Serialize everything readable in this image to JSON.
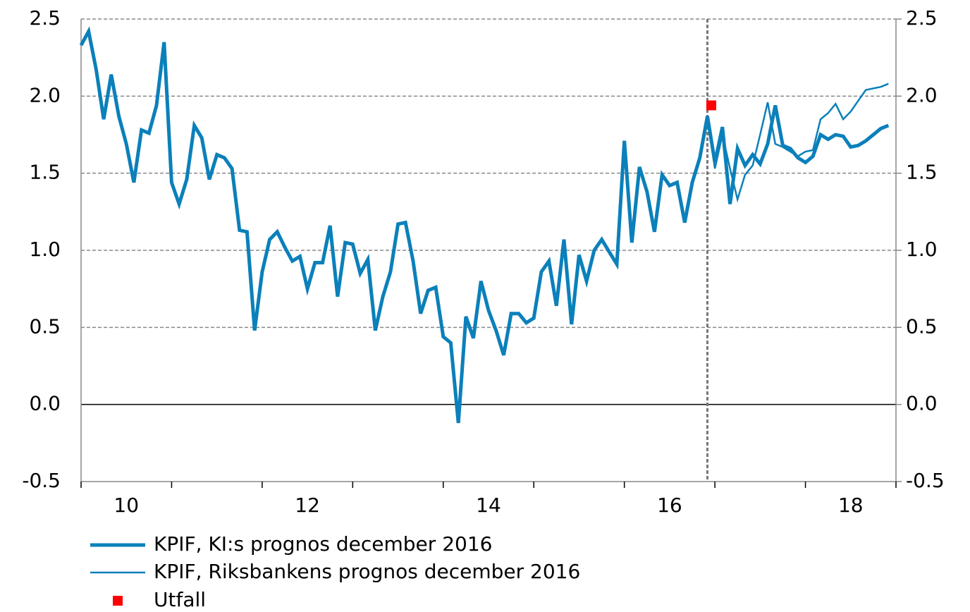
{
  "chart_data": {
    "type": "line",
    "x": [
      10,
      10.083,
      10.167,
      10.25,
      10.333,
      10.417,
      10.5,
      10.583,
      10.667,
      10.75,
      10.833,
      10.917,
      11,
      11.083,
      11.167,
      11.25,
      11.333,
      11.417,
      11.5,
      11.583,
      11.667,
      11.75,
      11.833,
      11.917,
      12,
      12.083,
      12.167,
      12.25,
      12.333,
      12.417,
      12.5,
      12.583,
      12.667,
      12.75,
      12.833,
      12.917,
      13,
      13.083,
      13.167,
      13.25,
      13.333,
      13.417,
      13.5,
      13.583,
      13.667,
      13.75,
      13.833,
      13.917,
      14,
      14.083,
      14.167,
      14.25,
      14.333,
      14.417,
      14.5,
      14.583,
      14.667,
      14.75,
      14.833,
      14.917,
      15,
      15.083,
      15.167,
      15.25,
      15.333,
      15.417,
      15.5,
      15.583,
      15.667,
      15.75,
      15.833,
      15.917,
      16,
      16.083,
      16.167,
      16.25,
      16.333,
      16.417,
      16.5,
      16.583,
      16.667,
      16.75,
      16.833,
      16.917,
      17,
      17.083,
      17.167,
      17.25,
      17.333,
      17.417,
      17.5,
      17.583,
      17.667,
      17.75,
      17.833,
      17.917,
      18,
      18.083,
      18.167,
      18.25,
      18.333,
      18.417,
      18.5,
      18.583,
      18.667,
      18.75,
      18.833,
      18.917
    ],
    "series": [
      {
        "name": "KPIF, Riksbankens prognos december 2016",
        "color": "#0b80ba",
        "width": 2.5,
        "values": [
          null,
          null,
          null,
          null,
          null,
          null,
          null,
          null,
          null,
          null,
          null,
          null,
          null,
          null,
          null,
          null,
          null,
          null,
          null,
          null,
          null,
          null,
          null,
          null,
          null,
          null,
          null,
          null,
          null,
          null,
          null,
          null,
          null,
          null,
          null,
          null,
          null,
          null,
          null,
          null,
          null,
          null,
          null,
          null,
          null,
          null,
          null,
          null,
          null,
          null,
          null,
          null,
          null,
          null,
          null,
          null,
          null,
          null,
          null,
          null,
          null,
          null,
          null,
          null,
          null,
          null,
          null,
          null,
          null,
          null,
          null,
          null,
          null,
          null,
          null,
          null,
          null,
          null,
          null,
          null,
          null,
          null,
          null,
          1.87,
          1.53,
          1.75,
          1.53,
          1.33,
          1.49,
          1.55,
          1.75,
          1.96,
          1.69,
          1.67,
          1.64,
          1.61,
          1.64,
          1.65,
          1.85,
          1.89,
          1.95,
          1.85,
          1.9,
          1.97,
          2.04,
          2.05,
          2.06,
          2.08
        ]
      },
      {
        "name": "KPIF, KI:s prognos december 2016",
        "color": "#0b80ba",
        "width": 5,
        "values": [
          2.33,
          2.42,
          2.17,
          1.85,
          2.14,
          1.87,
          1.69,
          1.44,
          1.78,
          1.76,
          1.94,
          2.35,
          1.44,
          1.3,
          1.46,
          1.81,
          1.73,
          1.46,
          1.62,
          1.6,
          1.53,
          1.13,
          1.12,
          0.48,
          0.86,
          1.07,
          1.12,
          1.02,
          0.93,
          0.96,
          0.75,
          0.92,
          0.92,
          1.16,
          0.7,
          1.05,
          1.04,
          0.85,
          0.94,
          0.48,
          0.7,
          0.86,
          1.17,
          1.18,
          0.93,
          0.59,
          0.74,
          0.76,
          0.44,
          0.4,
          -0.12,
          0.57,
          0.43,
          0.8,
          0.61,
          0.48,
          0.32,
          0.59,
          0.59,
          0.53,
          0.56,
          0.86,
          0.93,
          0.64,
          1.07,
          0.52,
          0.97,
          0.8,
          1.0,
          1.07,
          0.99,
          0.91,
          1.71,
          1.05,
          1.54,
          1.38,
          1.12,
          1.49,
          1.42,
          1.44,
          1.18,
          1.44,
          1.6,
          1.87,
          1.57,
          1.8,
          1.3,
          1.66,
          1.55,
          1.62,
          1.56,
          1.69,
          1.94,
          1.68,
          1.66,
          1.6,
          1.57,
          1.61,
          1.75,
          1.72,
          1.75,
          1.74,
          1.67,
          1.68,
          1.71,
          1.75,
          1.79,
          1.81
        ]
      }
    ],
    "marker": {
      "name": "Utfall",
      "color": "#ff0000",
      "x": 16.96,
      "y": 1.94
    },
    "forecast_start": 16.917,
    "xlim": [
      10,
      19
    ],
    "xticks": [
      {
        "value": 10.5,
        "label": "10"
      },
      {
        "value": 12.5,
        "label": "12"
      },
      {
        "value": 14.5,
        "label": "14"
      },
      {
        "value": 16.5,
        "label": "16"
      },
      {
        "value": 18.5,
        "label": "18"
      }
    ],
    "xtick_marks": [
      10,
      11,
      12,
      13,
      14,
      15,
      16,
      17,
      18,
      19
    ],
    "ylim": [
      -0.5,
      2.5
    ],
    "yticks": [
      {
        "value": -0.5,
        "label": "-0.5"
      },
      {
        "value": 0,
        "label": "0.0"
      },
      {
        "value": 0.5,
        "label": "0.5"
      },
      {
        "value": 1,
        "label": "1.0"
      },
      {
        "value": 1.5,
        "label": "1.5"
      },
      {
        "value": 2,
        "label": "2.0"
      },
      {
        "value": 2.5,
        "label": "2.5"
      }
    ],
    "y2lim": [
      -0.5,
      2.5
    ],
    "y2ticks": [
      {
        "value": -0.5,
        "label": "-0.5"
      },
      {
        "value": 0,
        "label": "0.0"
      },
      {
        "value": 0.5,
        "label": "0.5"
      },
      {
        "value": 1,
        "label": "1.0"
      },
      {
        "value": 1.5,
        "label": "1.5"
      },
      {
        "value": 2,
        "label": "2.0"
      },
      {
        "value": 2.5,
        "label": "2.5"
      }
    ],
    "grid": true
  }
}
